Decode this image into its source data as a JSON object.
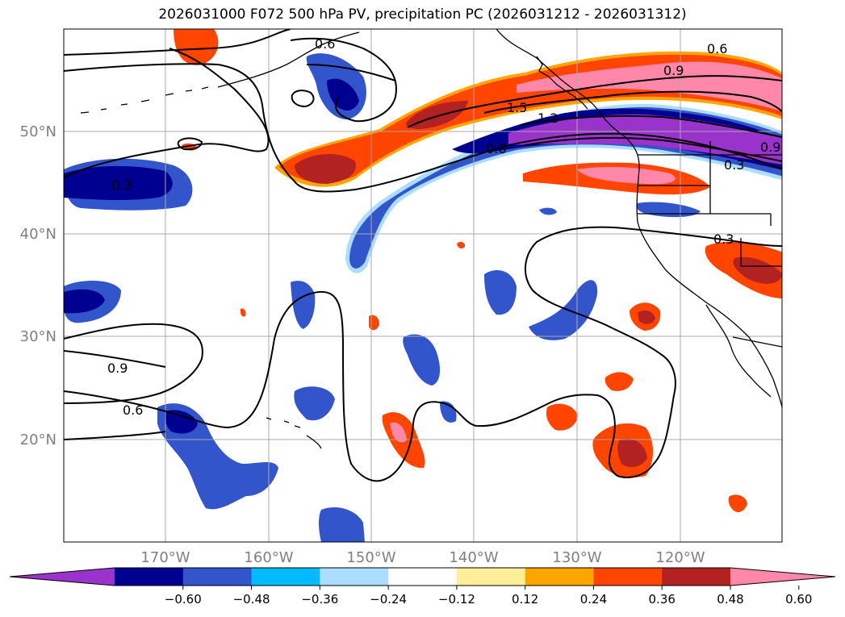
{
  "title": "2026031000 F072 500 hPa PV, precipitation PC (2026031212 - 2026031312)",
  "axes": {
    "lat_labels": [
      "50°N",
      "40°N",
      "30°N",
      "20°N"
    ],
    "lon_labels": [
      "170°W",
      "160°W",
      "150°W",
      "140°W",
      "130°W",
      "120°W"
    ],
    "tick_label_color": "#808080",
    "grid_color": "#a8a8a8"
  },
  "contours": {
    "line_color": "#000000",
    "labels": [
      "0.6",
      "0.9",
      "1.5",
      "1.2",
      "0.6",
      "0.9",
      "0.3",
      "0.3",
      "0.3",
      "0.9",
      "0.6"
    ]
  },
  "colorbar": {
    "colors": [
      "#9933cc",
      "#000090",
      "#3355cc",
      "#00bbff",
      "#aaddff",
      "#ffffff",
      "#ffee99",
      "#ffa500",
      "#ff4500",
      "#b22222",
      "#ff88aa"
    ],
    "ticks": [
      "−0.60",
      "−0.48",
      "−0.36",
      "−0.24",
      "−0.12",
      "0.12",
      "0.24",
      "0.36",
      "0.48",
      "0.60"
    ]
  },
  "chart_data": {
    "type": "heatmap",
    "title": "2026031000 F072 500 hPa PV, precipitation PC (2026031212 - 2026031312)",
    "variables": [
      "500 hPa PV (contours)",
      "precipitation PC (shaded)"
    ],
    "lon_range": [
      -180,
      -110
    ],
    "lat_range": [
      10,
      60
    ],
    "colorbar_levels": [
      -0.6,
      -0.48,
      -0.36,
      -0.24,
      -0.12,
      0.12,
      0.24,
      0.36,
      0.48,
      0.6
    ],
    "colorbar_extend": "both",
    "pv_contour_values_labeled": [
      0.3,
      0.6,
      0.9,
      1.2,
      1.5
    ]
  }
}
